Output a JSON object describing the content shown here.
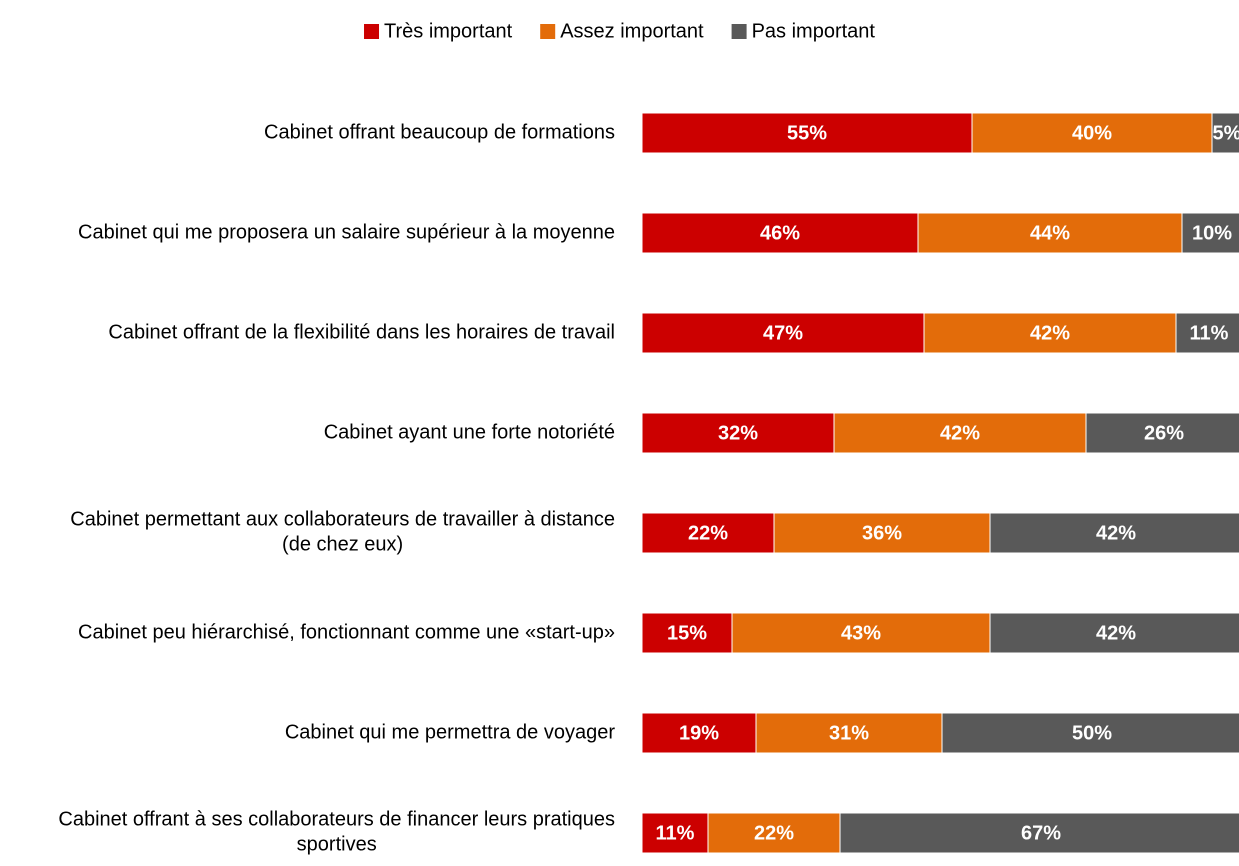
{
  "chart_data": {
    "type": "stacked_barh",
    "categories": [
      "Cabinet offrant beaucoup de formations",
      "Cabinet qui me proposera un salaire supérieur à la moyenne",
      "Cabinet offrant de la flexibilité dans les horaires de travail",
      "Cabinet ayant une forte notoriété",
      "Cabinet permettant aux collaborateurs de travailler à distance (de chez eux)",
      "Cabinet peu hiérarchisé, fonctionnant comme une «start-up»",
      "Cabinet qui me permettra de voyager",
      "Cabinet offrant à ses collaborateurs de financer leurs pratiques sportives"
    ],
    "series": [
      {
        "name": "Très important",
        "color": "#cc0000",
        "values": [
          55,
          46,
          47,
          32,
          22,
          15,
          19,
          11
        ],
        "value_labels": [
          "55%",
          "46%",
          "47%",
          "32%",
          "22%",
          "15%",
          "19%",
          "11%"
        ]
      },
      {
        "name": "Assez important",
        "color": "#e36c0a",
        "values": [
          40,
          44,
          42,
          42,
          36,
          43,
          31,
          22
        ],
        "value_labels": [
          "40%",
          "44%",
          "42%",
          "42%",
          "36%",
          "43%",
          "31%",
          "22%"
        ]
      },
      {
        "name": "Pas important",
        "color": "#595959",
        "values": [
          5,
          10,
          11,
          26,
          42,
          42,
          50,
          67
        ],
        "value_labels": [
          "5%",
          "10%",
          "11%",
          "26%",
          "42%",
          "42%",
          "50%",
          "67%"
        ]
      }
    ],
    "xlim": [
      0,
      100
    ],
    "legend": "top"
  }
}
